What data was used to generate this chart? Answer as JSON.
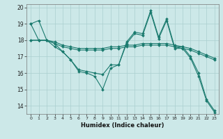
{
  "title": "",
  "xlabel": "Humidex (Indice chaleur)",
  "bg_color": "#cce8e8",
  "line_color": "#1a7a6e",
  "grid_color": "#aacfcf",
  "xlim": [
    -0.5,
    23.5
  ],
  "ylim": [
    13.5,
    20.2
  ],
  "yticks": [
    14,
    15,
    16,
    17,
    18,
    19,
    20
  ],
  "xticks": [
    0,
    1,
    2,
    3,
    4,
    5,
    6,
    7,
    8,
    9,
    10,
    11,
    12,
    13,
    14,
    15,
    16,
    17,
    18,
    19,
    20,
    21,
    22,
    23
  ],
  "lines": [
    {
      "x": [
        0,
        1,
        2,
        3,
        4,
        5,
        6,
        7,
        8,
        9,
        10,
        11,
        12,
        13,
        14,
        15,
        16,
        17,
        18,
        19,
        20,
        21,
        22,
        23
      ],
      "y": [
        19.0,
        19.2,
        18.0,
        17.6,
        17.3,
        16.8,
        16.1,
        16.0,
        15.8,
        15.0,
        16.3,
        16.5,
        17.9,
        18.5,
        18.4,
        19.8,
        18.2,
        19.3,
        17.6,
        17.6,
        17.0,
        16.0,
        14.4,
        13.7
      ]
    },
    {
      "x": [
        0,
        1,
        2,
        3,
        4,
        5,
        6,
        7,
        8,
        9,
        10,
        11,
        12,
        13,
        14,
        15,
        16,
        17,
        18,
        19,
        20,
        21,
        22,
        23
      ],
      "y": [
        18.0,
        18.0,
        18.0,
        17.9,
        17.7,
        17.6,
        17.5,
        17.5,
        17.5,
        17.5,
        17.6,
        17.6,
        17.7,
        17.7,
        17.8,
        17.8,
        17.8,
        17.8,
        17.7,
        17.6,
        17.5,
        17.3,
        17.1,
        16.9
      ]
    },
    {
      "x": [
        0,
        1,
        2,
        3,
        4,
        5,
        6,
        7,
        8,
        9,
        10,
        11,
        12,
        13,
        14,
        15,
        16,
        17,
        18,
        19,
        20,
        21,
        22,
        23
      ],
      "y": [
        18.0,
        18.0,
        18.0,
        17.8,
        17.6,
        17.5,
        17.4,
        17.4,
        17.4,
        17.4,
        17.5,
        17.5,
        17.6,
        17.6,
        17.7,
        17.7,
        17.7,
        17.7,
        17.6,
        17.5,
        17.4,
        17.2,
        17.0,
        16.8
      ]
    },
    {
      "x": [
        0,
        1,
        2,
        3,
        4,
        5,
        6,
        7,
        8,
        9,
        10,
        11,
        12,
        13,
        14,
        15,
        16,
        17,
        18,
        19,
        20,
        21,
        22,
        23
      ],
      "y": [
        19.0,
        18.0,
        18.0,
        17.8,
        17.3,
        16.8,
        16.2,
        16.1,
        16.0,
        15.9,
        16.5,
        16.5,
        17.8,
        18.4,
        18.3,
        19.7,
        18.1,
        19.2,
        17.5,
        17.5,
        16.9,
        15.8,
        14.3,
        13.6
      ]
    }
  ]
}
